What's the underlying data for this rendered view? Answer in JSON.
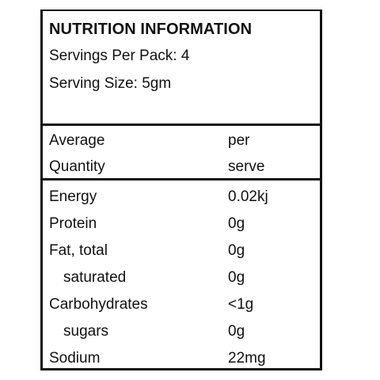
{
  "panel": {
    "title": "NUTRITION INFORMATION",
    "servings_per_pack": "Servings Per Pack: 4",
    "serving_size": "Serving Size: 5gm"
  },
  "columns": {
    "left_line1": "Average",
    "left_line2": "Quantity",
    "right_line1": "per",
    "right_line2": "serve"
  },
  "nutrients": [
    {
      "label": "Energy",
      "value": "0.02kj"
    },
    {
      "label": "Protein",
      "value": "0g"
    },
    {
      "label": "Fat, total",
      "value": "0g"
    },
    {
      "label": "saturated",
      "value": "0g"
    },
    {
      "label": "Carbohydrates",
      "value": "<1g"
    },
    {
      "label": "sugars",
      "value": "0g"
    },
    {
      "label": "Sodium",
      "value": "22mg"
    }
  ]
}
